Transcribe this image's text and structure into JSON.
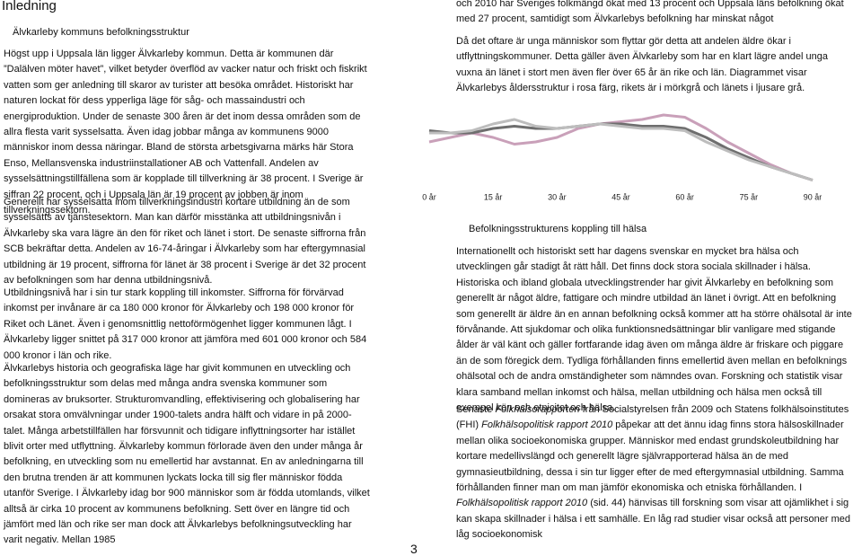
{
  "header": {
    "title": "Inledning",
    "subtitle": "Älvkarleby kommuns befolkningsstruktur"
  },
  "left": {
    "paragraphs": [
      "Högst upp i Uppsala län ligger Älvkarleby kommun. Detta är kommunen där ”Dalälven möter havet”, vilket betyder överflöd av vacker natur och friskt och fiskrikt vatten som ger anledning till skaror av turister att besöka området. Historiskt har naturen lockat för dess ypperliga läge för såg- och massaindustri och energiproduktion. Under de senaste 300 åren är det inom dessa områden som de allra flesta varit sysselsatta. Även idag jobbar många av kommunens 9000 människor inom dessa näringar. Bland de största arbetsgivarna märks här Stora Enso, Mellansvenska industriinstallationer AB och Vattenfall. Andelen av sysselsättningstillfällena som är kopplade till tillverkning är 38 procent. I Sverige är siffran 22 procent, och i Uppsala län är 19 procent av jobben är inom tillverkningssektorn.",
      "Generellt har sysselsatta inom tillverkningsindustri kortare utbildning än de som sysselsätts av tjänstesektorn. Man kan därför misstänka att utbildningsnivån i Älvkarleby ska vara lägre än den för riket och länet i stort. De senaste siffrorna från SCB bekräftar detta. Andelen av 16-74-åringar i Älvkarleby som har eftergymnasial utbildning är 19 procent, siffrorna för länet är 38 procent i Sverige är det 32 procent av befolkningen som har denna utbildningsnivå.",
      "Utbildningsnivå har i sin tur stark koppling till inkomster. Siffrorna för förvärvad inkomst per invånare är ca 180 000 kronor för Älvkarleby och 198 000 kronor för Riket och Länet. Även i genomsnittlig nettoförmögenhet ligger kommunen lågt. I Älvkarleby ligger snittet på 317 000 kronor att jämföra med 601 000 kronor och 584 000 kronor i län och rike.",
      "Älvkarlebys historia och geografiska läge har givit kommunen en utveckling och befolkningsstruktur som delas med många andra svenska kommuner som domineras av bruksorter. Strukturomvandling, effektivisering och globalisering har orsakat stora omvälvningar under 1900-talets andra hälft och vidare in på 2000-talet. Många arbetstillfällen har försvunnit och tidigare inflyttningsorter har istället blivit orter med utflyttning. Älvkarleby kommun förlorade även den under många år befolkning, en utveckling som nu emellertid har avstannat. En av anledningarna till den brutna trenden är att kommunen lyckats locka till sig fler människor födda utanför Sverige. I Älvkarleby idag bor 900 människor som är födda utomlands, vilket alltså är cirka 10 procent av kommunens befolkning.  Sett över en längre tid och jämfört med län och rike ser man dock att Älvkarlebys befolkningsutveckling har varit negativ. Mellan 1985"
    ]
  },
  "right": {
    "paragraphs": [
      "och 2010 har Sveriges folkmängd ökat med 13 procent och Uppsala läns befolkning ökat med 27 procent, samtidigt som Älvkarlebys befolkning har minskat något",
      "Då det oftare är unga människor som flyttar gör detta att andelen äldre ökar i utflyttningskommuner. Detta gäller även Älvkarleby som har en klart lägre andel unga vuxna än länet i stort men även fler över 65 år än rike och län. Diagrammet visar Älvkarlebys åldersstruktur i rosa färg, rikets är i mörkgrå och länets i ljusare grå."
    ],
    "caption": "Befolkningsstrukturens koppling till hälsa",
    "health_paragraphs": [
      [
        {
          "text": "Internationellt och historiskt sett har dagens svenskar en mycket bra hälsa och utvecklingen går stadigt åt rätt håll. Det finns dock stora sociala skillnader i hälsa. Historiska och ibland globala utvecklingstrender har givit Älvkarleby en befolkning som generellt är något äldre, fattigare och mindre utbildad än länet i övrigt. Att en befolkning som generellt är äldre än en annan befolkning också kommer att ha större ohälsotal är inte förvånande. Att sjukdomar och olika funktionsnedsättningar blir vanligare med stigande ålder är väl känt och gäller fortfarande idag även om många äldre är friskare och piggare än de som föregick dem. Tydliga förhållanden finns emellertid även mellan en befolknings ohälsotal och de andra omständigheter som nämndes ovan. Forskning och statistik visar klara samband mellan inkomst och hälsa, mellan utbildning och hälsa men också till exempel kön och etnicitet och hälsa.",
          "italic": false
        }
      ],
      [
        {
          "text": "Senaste ",
          "italic": false
        },
        {
          "text": "Folkhälsorapporten",
          "italic": true
        },
        {
          "text": " från Socialstyrelsen från 2009 och Statens folkhälsoinstitutes (FHI) ",
          "italic": false
        },
        {
          "text": "Folkhälsopolitisk rapport 2010",
          "italic": true
        },
        {
          "text": " påpekar att det ännu idag finns stora hälsoskillnader mellan olika socioekonomiska grupper. Människor med endast grundskoleutbildning har kortare medellivslängd och generellt lägre självrapporterad hälsa än de med gymnasieutbildning, dessa i sin tur ligger efter de med eftergymnasial utbildning. Samma förhållanden finner man om man jämför ekonomiska och etniska förhållanden. I ",
          "italic": false
        },
        {
          "text": "Folkhälsopolitisk rapport 2010",
          "italic": true
        },
        {
          "text": "  (sid. 44) hänvisas till forskning som visar att ojämlikhet i sig kan skapa skillnader i hälsa i ett samhälle. En låg rad studier visar också att personer med låg socioekonomisk",
          "italic": false
        }
      ]
    ]
  },
  "chart_data": {
    "type": "line",
    "x": [
      0,
      5,
      10,
      15,
      20,
      25,
      30,
      35,
      40,
      45,
      50,
      55,
      60,
      65,
      70,
      75,
      80,
      85,
      90
    ],
    "series": [
      {
        "color": "#c9a0b9",
        "values": [
          1.0,
          1.1,
          1.2,
          1.1,
          0.95,
          1.0,
          1.1,
          1.3,
          1.4,
          1.45,
          1.5,
          1.6,
          1.55,
          1.3,
          1.0,
          0.75,
          0.5,
          0.3,
          0.15
        ]
      },
      {
        "color": "#6e6e6e",
        "values": [
          1.25,
          1.2,
          1.2,
          1.3,
          1.35,
          1.3,
          1.3,
          1.35,
          1.4,
          1.4,
          1.35,
          1.35,
          1.3,
          1.1,
          0.85,
          0.65,
          0.45,
          0.3,
          0.15
        ]
      },
      {
        "color": "#bdbdbd",
        "values": [
          1.2,
          1.2,
          1.25,
          1.4,
          1.5,
          1.35,
          1.3,
          1.35,
          1.4,
          1.35,
          1.3,
          1.3,
          1.25,
          1.0,
          0.8,
          0.6,
          0.45,
          0.3,
          0.15
        ]
      }
    ],
    "xlim": [
      0,
      90
    ],
    "ylim": [
      0,
      2
    ],
    "xticks": [
      {
        "value": 0,
        "label": "0 år"
      },
      {
        "value": 15,
        "label": "15 år"
      },
      {
        "value": 30,
        "label": "30 år"
      },
      {
        "value": 45,
        "label": "45 år"
      },
      {
        "value": 60,
        "label": "60 år"
      },
      {
        "value": 75,
        "label": "75 år"
      },
      {
        "value": 90,
        "label": "90 år"
      }
    ]
  }
}
